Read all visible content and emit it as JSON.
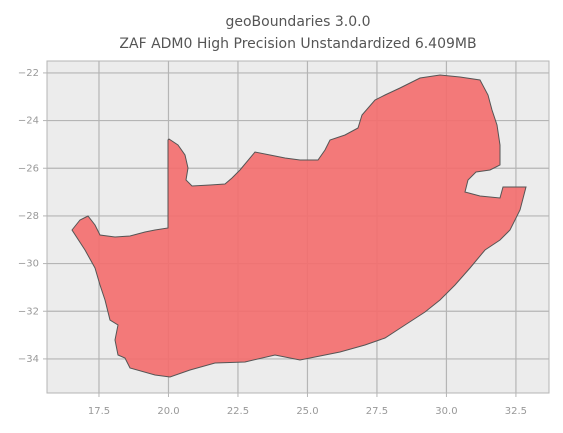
{
  "chart_data": {
    "type": "map",
    "title": "geoBoundaries 3.0.0",
    "subtitle": "ZAF ADM0 High Precision Unstandardized 6.409MB",
    "xlim": [
      15.63,
      33.69
    ],
    "ylim": [
      -35.43,
      -21.5
    ],
    "xticks": [
      17.5,
      {
        "value": 20,
        "label": "20.0"
      },
      22.5,
      {
        "value": 25,
        "label": "25.0"
      },
      27.5,
      {
        "value": 30,
        "label": "30.0"
      },
      32.5
    ],
    "yticks": [
      {
        "value": -22,
        "label": "−22"
      },
      {
        "value": -24,
        "label": "−24"
      },
      {
        "value": -26,
        "label": "−26"
      },
      {
        "value": -28,
        "label": "−28"
      },
      {
        "value": -30,
        "label": "−30"
      },
      {
        "value": -32,
        "label": "−32"
      },
      {
        "value": -34,
        "label": "−34"
      }
    ],
    "grid": true,
    "color": "#f46d6d"
  }
}
